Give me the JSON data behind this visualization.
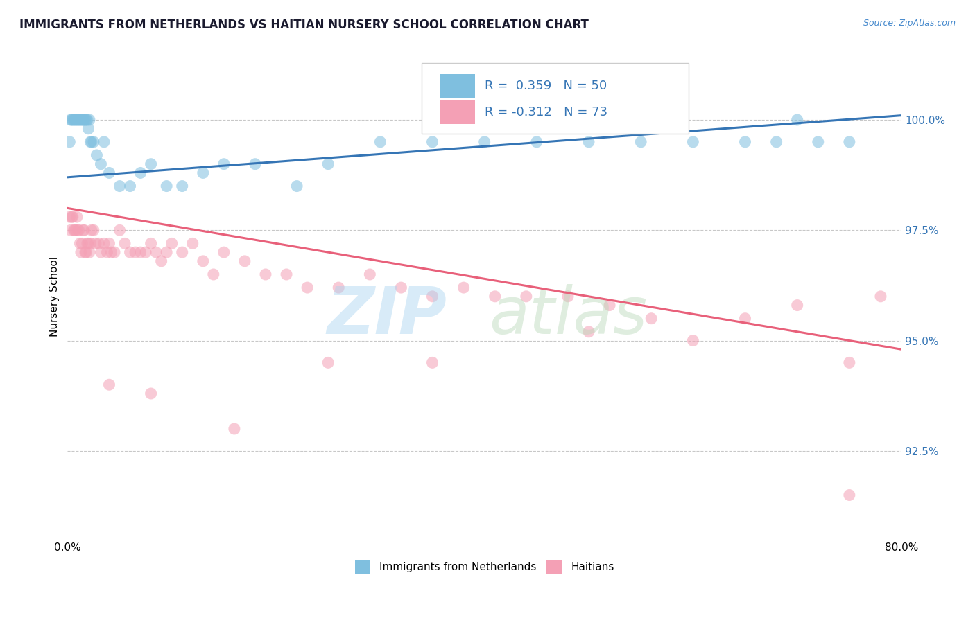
{
  "title": "IMMIGRANTS FROM NETHERLANDS VS HAITIAN NURSERY SCHOOL CORRELATION CHART",
  "source": "Source: ZipAtlas.com",
  "xlabel_bottom_left": "0.0%",
  "xlabel_bottom_right": "80.0%",
  "ylabel": "Nursery School",
  "yticks": [
    92.5,
    95.0,
    97.5,
    100.0
  ],
  "ytick_labels": [
    "92.5%",
    "95.0%",
    "97.5%",
    "100.0%"
  ],
  "xlim": [
    0.0,
    80.0
  ],
  "ylim": [
    90.5,
    101.5
  ],
  "blue_color": "#7fbfdf",
  "pink_color": "#f4a0b5",
  "blue_line_color": "#3575b5",
  "pink_line_color": "#e8607a",
  "blue_scatter_x": [
    0.2,
    0.3,
    0.4,
    0.5,
    0.6,
    0.7,
    0.8,
    0.9,
    1.0,
    1.1,
    1.2,
    1.3,
    1.4,
    1.5,
    1.6,
    1.7,
    1.8,
    1.9,
    2.0,
    2.1,
    2.2,
    2.3,
    2.5,
    2.8,
    3.2,
    3.5,
    4.0,
    5.0,
    6.0,
    7.0,
    8.0,
    9.5,
    11.0,
    13.0,
    15.0,
    18.0,
    22.0,
    25.0,
    30.0,
    35.0,
    40.0,
    45.0,
    50.0,
    55.0,
    60.0,
    65.0,
    68.0,
    70.0,
    72.0,
    75.0
  ],
  "blue_scatter_y": [
    99.5,
    100.0,
    100.0,
    100.0,
    100.0,
    100.0,
    100.0,
    100.0,
    100.0,
    100.0,
    100.0,
    100.0,
    100.0,
    100.0,
    100.0,
    100.0,
    100.0,
    100.0,
    99.8,
    100.0,
    99.5,
    99.5,
    99.5,
    99.2,
    99.0,
    99.5,
    98.8,
    98.5,
    98.5,
    98.8,
    99.0,
    98.5,
    98.5,
    98.8,
    99.0,
    99.0,
    98.5,
    99.0,
    99.5,
    99.5,
    99.5,
    99.5,
    99.5,
    99.5,
    99.5,
    99.5,
    99.5,
    100.0,
    99.5,
    99.5
  ],
  "pink_scatter_x": [
    0.2,
    0.3,
    0.4,
    0.5,
    0.6,
    0.7,
    0.8,
    0.9,
    1.0,
    1.1,
    1.2,
    1.3,
    1.4,
    1.5,
    1.6,
    1.7,
    1.8,
    1.9,
    2.0,
    2.1,
    2.2,
    2.3,
    2.5,
    2.7,
    3.0,
    3.2,
    3.5,
    3.8,
    4.0,
    4.2,
    4.5,
    5.0,
    5.5,
    6.0,
    6.5,
    7.0,
    7.5,
    8.0,
    8.5,
    9.0,
    9.5,
    10.0,
    11.0,
    12.0,
    13.0,
    14.0,
    15.0,
    17.0,
    19.0,
    21.0,
    23.0,
    26.0,
    29.0,
    32.0,
    35.0,
    38.0,
    41.0,
    44.0,
    48.0,
    52.0,
    56.0,
    65.0,
    70.0,
    75.0,
    78.0,
    4.0,
    8.0,
    16.0,
    25.0,
    35.0,
    50.0,
    60.0,
    75.0
  ],
  "pink_scatter_y": [
    97.8,
    97.5,
    97.8,
    97.8,
    97.5,
    97.5,
    97.5,
    97.8,
    97.5,
    97.5,
    97.2,
    97.0,
    97.2,
    97.5,
    97.5,
    97.0,
    97.0,
    97.2,
    97.2,
    97.0,
    97.2,
    97.5,
    97.5,
    97.2,
    97.2,
    97.0,
    97.2,
    97.0,
    97.2,
    97.0,
    97.0,
    97.5,
    97.2,
    97.0,
    97.0,
    97.0,
    97.0,
    97.2,
    97.0,
    96.8,
    97.0,
    97.2,
    97.0,
    97.2,
    96.8,
    96.5,
    97.0,
    96.8,
    96.5,
    96.5,
    96.2,
    96.2,
    96.5,
    96.2,
    96.0,
    96.2,
    96.0,
    96.0,
    96.0,
    95.8,
    95.5,
    95.5,
    95.8,
    94.5,
    96.0,
    94.0,
    93.8,
    93.0,
    94.5,
    94.5,
    95.2,
    95.0,
    91.5
  ],
  "watermark_zip": "ZIP",
  "watermark_atlas": "atlas",
  "background_color": "#ffffff",
  "grid_color": "#c8c8c8",
  "legend_text_color": "#3575b5",
  "title_color": "#1a1a2e",
  "source_color": "#4488cc"
}
